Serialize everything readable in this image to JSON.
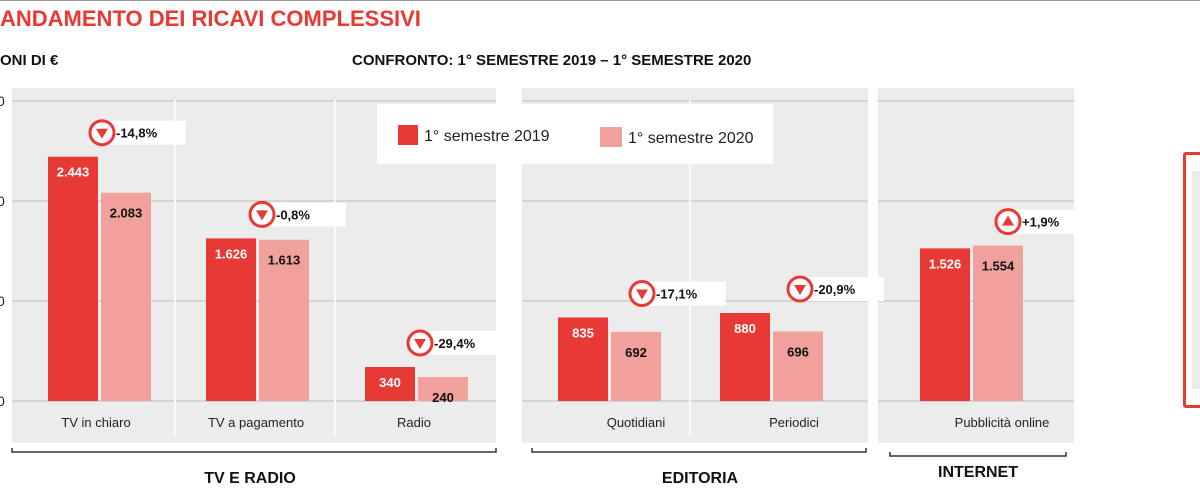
{
  "header": {
    "title": "ANDAMENTO DEI RICAVI COMPLESSIVI",
    "unit_label": "ONI DI €",
    "subtitle": "CONFRONTO: 1° SEMESTRE 2019 – 1° SEMESTRE 2020"
  },
  "colors": {
    "accent": "#e83a34",
    "series_2019": "#e83a34",
    "series_2020": "#f0a19b",
    "panel_bg": "#ececec",
    "grid": "#bdbdbd"
  },
  "chart_data": {
    "type": "bar",
    "title": "ANDAMENTO DEI RICAVI COMPLESSIVI",
    "subtitle": "CONFRONTO: 1° SEMESTRE 2019 – 1° SEMESTRE 2020",
    "ylim": [
      0,
      3000
    ],
    "y_gridlines": [
      0,
      1000,
      2000,
      3000
    ],
    "y_tick_labels_visible": [
      "0",
      "0",
      "0",
      "0"
    ],
    "grid": true,
    "legend_position": "top-center",
    "series": [
      {
        "name": "1° semestre 2019",
        "color": "#e83a34"
      },
      {
        "name": "1° semestre 2020",
        "color": "#f0a19b"
      }
    ],
    "groups": [
      {
        "name": "TV E RADIO",
        "categories": [
          {
            "label": "TV in chiaro",
            "v2019": 2443,
            "v2020": 2083,
            "l2019": "2.443",
            "l2020": "2.083",
            "change": "-14,8%",
            "dir": "down"
          },
          {
            "label": "TV a pagamento",
            "v2019": 1626,
            "v2020": 1613,
            "l2019": "1.626",
            "l2020": "1.613",
            "change": "-0,8%",
            "dir": "down"
          },
          {
            "label": "Radio",
            "v2019": 340,
            "v2020": 240,
            "l2019": "340",
            "l2020": "240",
            "change": "-29,4%",
            "dir": "down"
          }
        ]
      },
      {
        "name": "EDITORIA",
        "categories": [
          {
            "label": "Quotidiani",
            "v2019": 835,
            "v2020": 692,
            "l2019": "835",
            "l2020": "692",
            "change": "-17,1%",
            "dir": "down"
          },
          {
            "label": "Periodici",
            "v2019": 880,
            "v2020": 696,
            "l2019": "880",
            "l2020": "696",
            "change": "-20,9%",
            "dir": "down"
          }
        ]
      },
      {
        "name": "INTERNET",
        "categories": [
          {
            "label": "Pubblicità online",
            "v2019": 1526,
            "v2020": 1554,
            "l2019": "1.526",
            "l2020": "1.554",
            "change": "+1,9%",
            "dir": "up"
          }
        ]
      }
    ]
  }
}
